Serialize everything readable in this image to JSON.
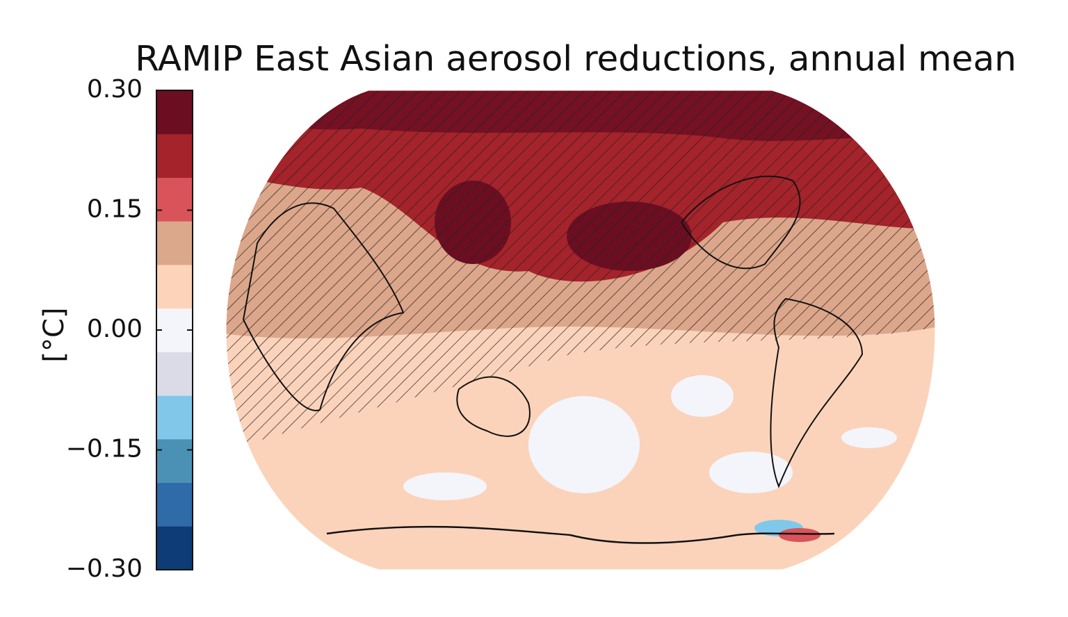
{
  "chart_data": {
    "type": "map",
    "title": "RAMIP East Asian aerosol reductions, annual mean",
    "colorbar": {
      "label": "[°C]",
      "lim": [
        -0.3,
        0.3
      ],
      "ticks": [
        {
          "value": 0.3,
          "label": "0.30"
        },
        {
          "value": 0.15,
          "label": "0.15"
        },
        {
          "value": 0,
          "label": "0.00"
        },
        {
          "value": -0.15,
          "label": "−0.15"
        },
        {
          "value": -0.3,
          "label": "−0.30"
        }
      ],
      "colors": [
        "#0d3c76",
        "#2f6aa9",
        "#4b91b5",
        "#80c8ea",
        "#dadbe6",
        "#f4f5fb",
        "#fdd3b9",
        "#dba88b",
        "#d9545a",
        "#a5232a",
        "#6b0e22"
      ]
    }
  }
}
